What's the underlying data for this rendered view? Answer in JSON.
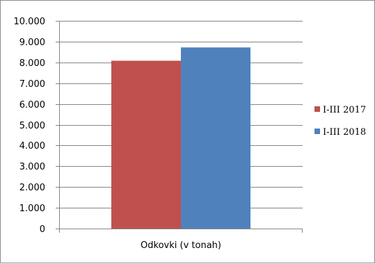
{
  "chart_data": {
    "type": "bar",
    "categories": [
      "Odkovki (v tonah)"
    ],
    "series": [
      {
        "name": "I-III 2017",
        "values": [
          8080
        ],
        "color": "#c0504d"
      },
      {
        "name": "I-III 2018",
        "values": [
          8720
        ],
        "color": "#4f81bd"
      }
    ],
    "yticks": [
      "0",
      "1.000",
      "2.000",
      "3.000",
      "4.000",
      "5.000",
      "6.000",
      "7.000",
      "8.000",
      "9.000",
      "10.000"
    ],
    "ylim": [
      0,
      10000
    ],
    "grid": true,
    "legend_position": "right",
    "gridline_color": "#868686",
    "axis_color": "#868686"
  }
}
